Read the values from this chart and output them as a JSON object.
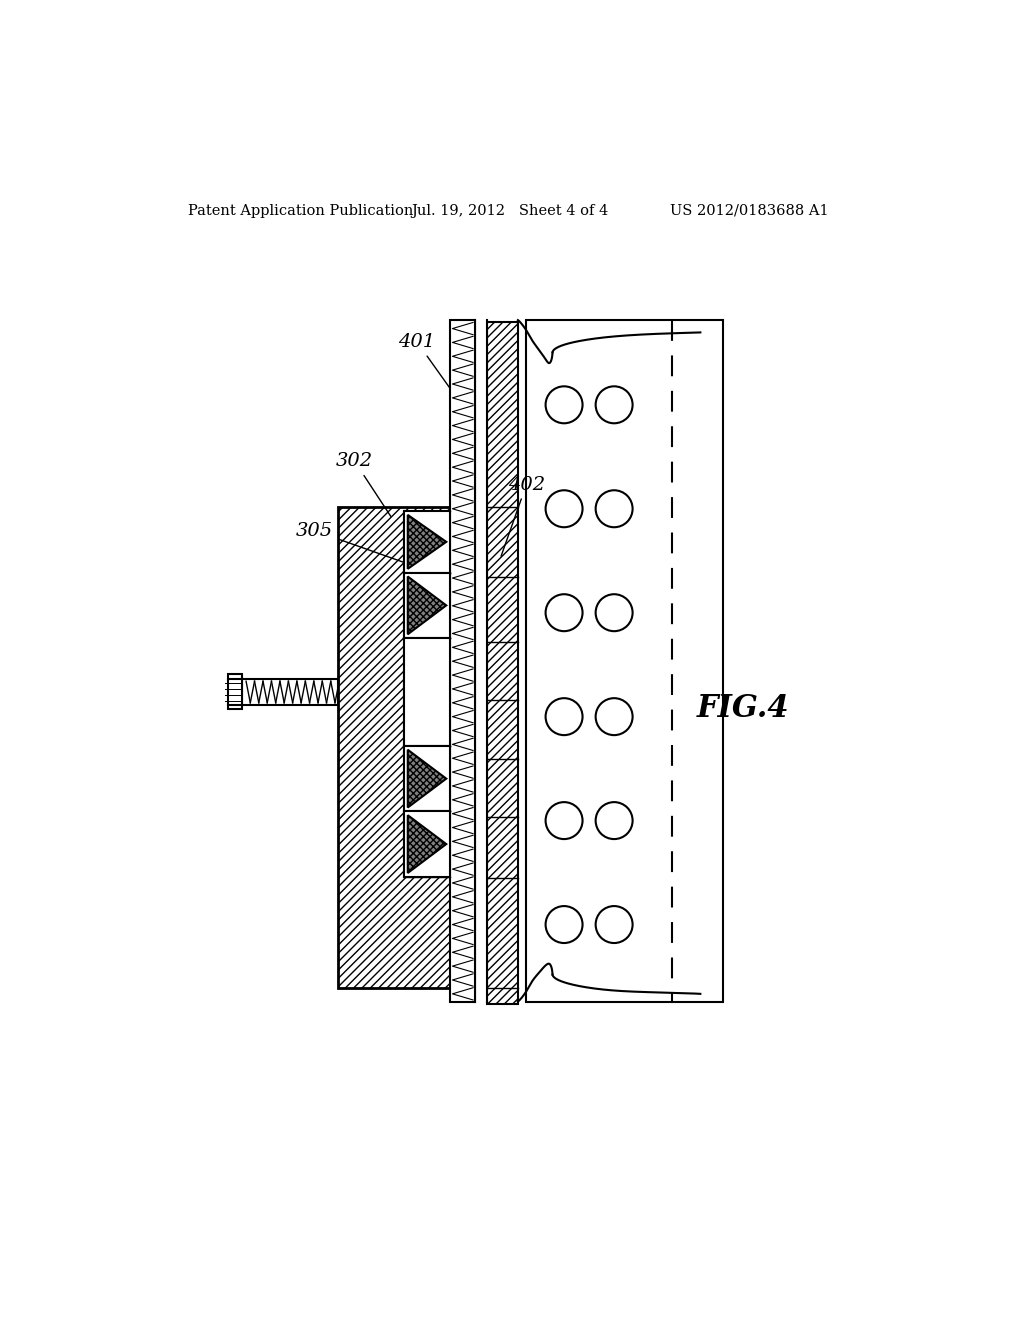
{
  "title_left": "Patent Application Publication",
  "title_mid": "Jul. 19, 2012   Sheet 4 of 4",
  "title_right": "US 2012/0183688 A1",
  "fig_label": "FIG.4",
  "label_401": "401",
  "label_402": "402",
  "label_302": "302",
  "label_305": "305",
  "bg_color": "#ffffff",
  "line_color": "#000000",
  "header_fontsize": 10.5,
  "label_fontsize": 14,
  "fig_fontsize": 22
}
